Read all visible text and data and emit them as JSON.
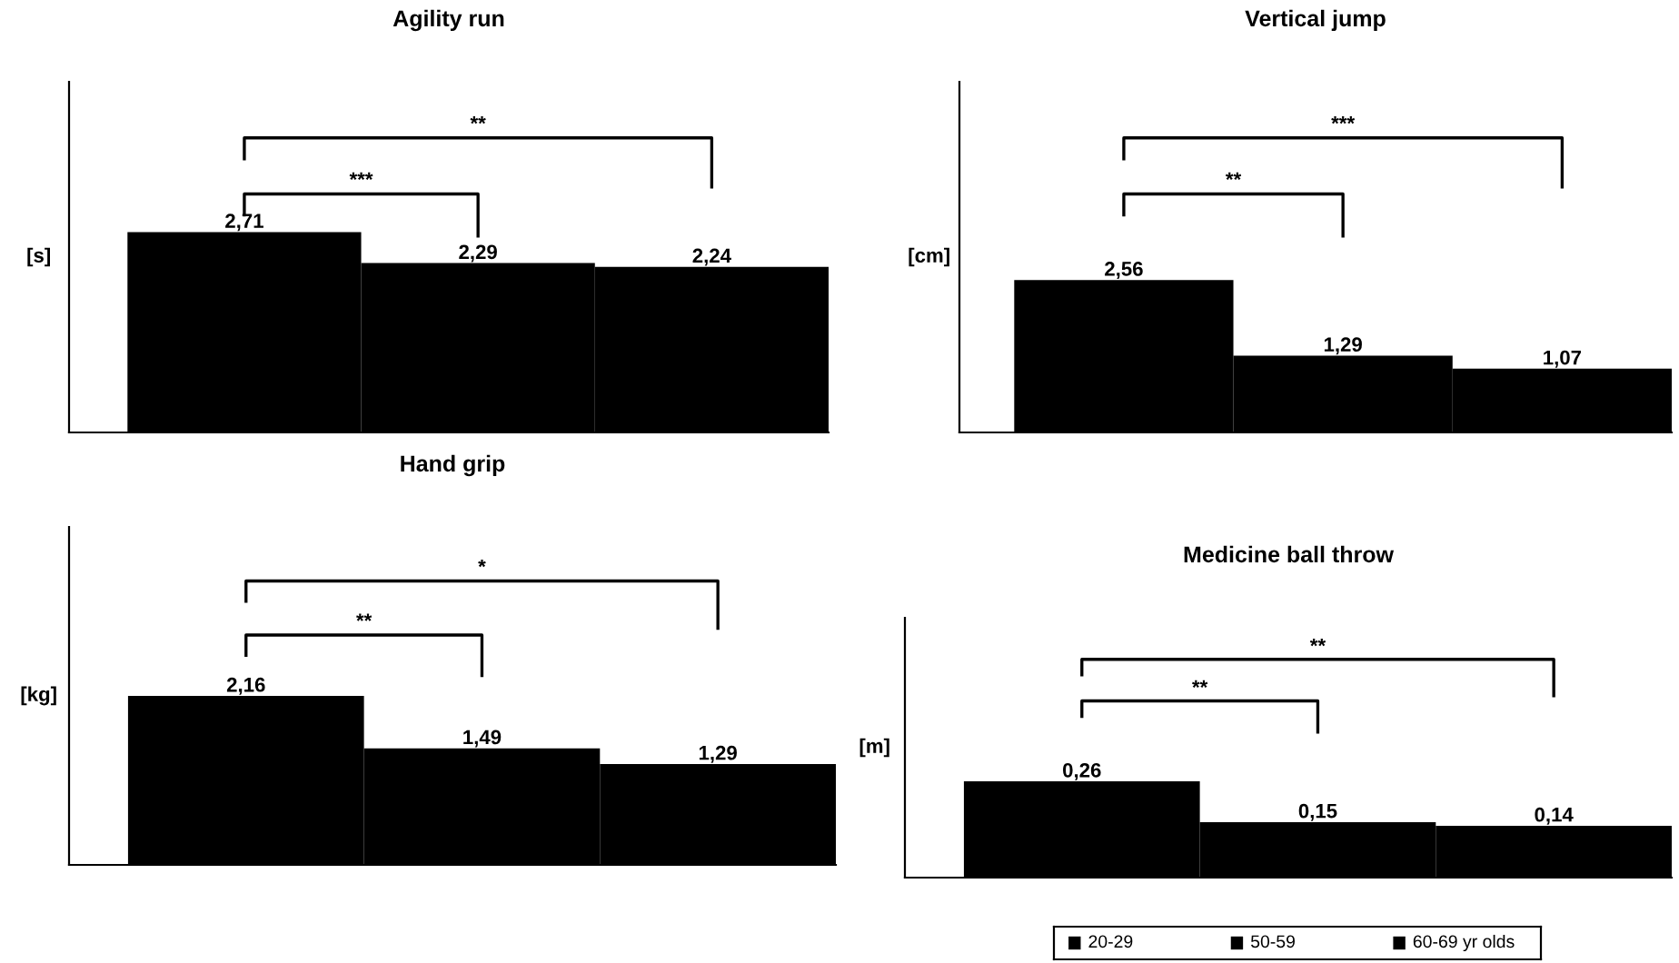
{
  "chart_data": [
    {
      "type": "bar",
      "title": "Agility run",
      "ylabel": "[s]",
      "categories": [
        null,
        null,
        null
      ],
      "color": "#000000",
      "values": [
        2.71,
        2.29,
        2.24
      ],
      "value_labels": [
        "2,71",
        "2,29",
        "2,24"
      ],
      "annotations": [
        "***",
        "**"
      ],
      "tick_labels": false
    },
    {
      "type": "bar",
      "title": "Vertical jump",
      "ylabel": "[cm]",
      "categories": [
        null,
        null,
        null
      ],
      "color": "#000000",
      "values": [
        2.56,
        1.29,
        1.07
      ],
      "value_labels": [
        "2,56",
        "1,29",
        "1,07"
      ],
      "annotations": [
        "**",
        "***"
      ],
      "tick_labels": false
    },
    {
      "type": "bar",
      "title": "Hand grip",
      "ylabel": "[kg]",
      "categories": [
        null,
        null,
        null
      ],
      "color": "#000000",
      "values": [
        2.16,
        1.49,
        1.29
      ],
      "value_labels": [
        "2,16",
        "1,49",
        "1,29"
      ],
      "annotations": [
        "**",
        "*"
      ],
      "tick_labels": false
    },
    {
      "type": "bar",
      "title": "Medicine ball throw",
      "ylabel": "[m]",
      "categories": [
        null,
        null,
        null
      ],
      "color": "#000000",
      "values": [
        0.26,
        0.15,
        0.14
      ],
      "value_labels": [
        "0,26",
        "0,15",
        "0,14"
      ],
      "annotations": [
        "**",
        "**"
      ],
      "tick_labels": false
    },
    {
      "type": "other",
      "color": "#000000",
      "annotations": [
        "20-29",
        "50-59",
        "60-69 yr olds"
      ]
    }
  ]
}
